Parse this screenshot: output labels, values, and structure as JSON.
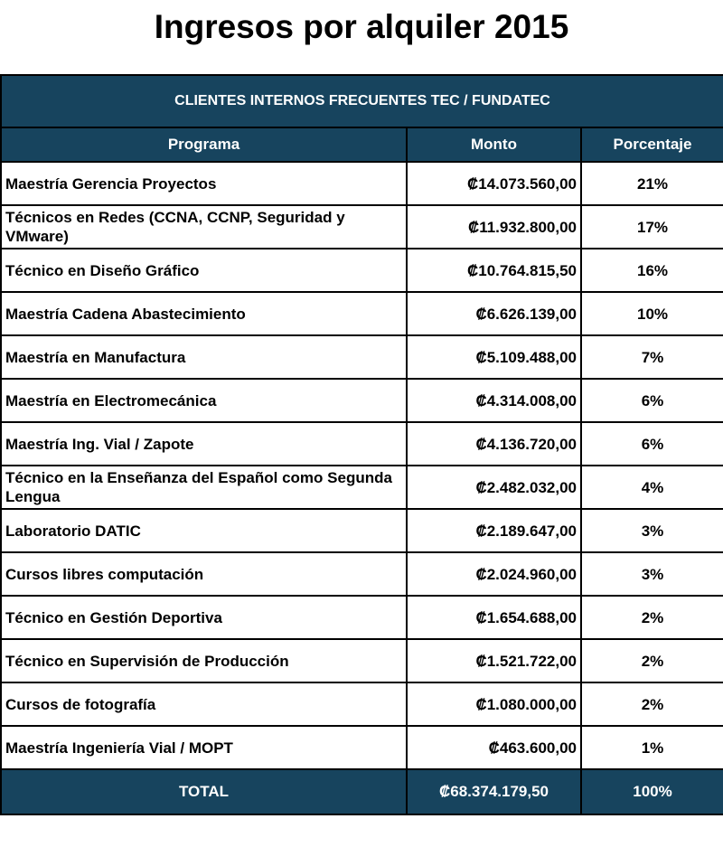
{
  "title": "Ingresos por alquiler 2015",
  "section_title": "CLIENTES INTERNOS FRECUENTES TEC / FUNDATEC",
  "headers": {
    "program": "Programa",
    "amount": "Monto",
    "percent": "Porcentaje"
  },
  "rows": [
    {
      "program": "Maestría Gerencia Proyectos",
      "amount": "₡14.073.560,00",
      "percent": "21%"
    },
    {
      "program": "Técnicos en Redes (CCNA, CCNP, Seguridad y VMware)",
      "amount": "₡11.932.800,00",
      "percent": "17%"
    },
    {
      "program": "Técnico en Diseño Gráfico",
      "amount": "₡10.764.815,50",
      "percent": "16%"
    },
    {
      "program": "Maestría Cadena Abastecimiento",
      "amount": "₡6.626.139,00",
      "percent": "10%"
    },
    {
      "program": "Maestría en Manufactura",
      "amount": "₡5.109.488,00",
      "percent": "7%"
    },
    {
      "program": "Maestría en Electromecánica",
      "amount": "₡4.314.008,00",
      "percent": "6%"
    },
    {
      "program": "Maestría Ing.  Vial /  Zapote",
      "amount": "₡4.136.720,00",
      "percent": "6%"
    },
    {
      "program": "Técnico en la Enseñanza del Español como Segunda Lengua",
      "amount": "₡2.482.032,00",
      "percent": "4%"
    },
    {
      "program": "Laboratorio DATIC",
      "amount": "₡2.189.647,00",
      "percent": "3%"
    },
    {
      "program": "Cursos libres computación",
      "amount": "₡2.024.960,00",
      "percent": "3%"
    },
    {
      "program": "Técnico en Gestión Deportiva",
      "amount": "₡1.654.688,00",
      "percent": "2%"
    },
    {
      "program": "Técnico en Supervisión de Producción",
      "amount": "₡1.521.722,00",
      "percent": "2%"
    },
    {
      "program": "Cursos de fotografía",
      "amount": "₡1.080.000,00",
      "percent": "2%"
    },
    {
      "program": "Maestría  Ingeniería Vial / MOPT",
      "amount": "₡463.600,00",
      "percent": "1%"
    }
  ],
  "total": {
    "label": "TOTAL",
    "amount": "₡68.374.179,50",
    "percent": "100%"
  },
  "colors": {
    "header_band": "#17445e",
    "header_text": "#ffffff",
    "border": "#000000"
  }
}
